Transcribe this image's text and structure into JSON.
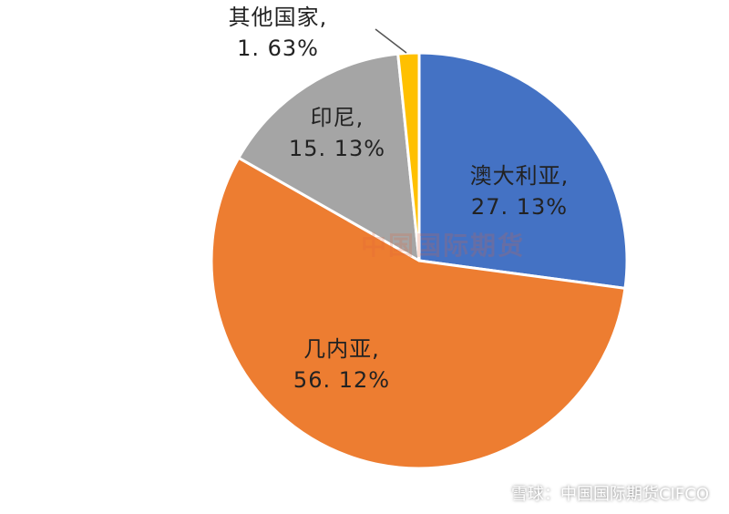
{
  "chart_data": {
    "type": "pie",
    "slices": [
      {
        "name": "澳大利亚,",
        "value": 27.13,
        "value_label": "27. 13%",
        "color": "#4472c4"
      },
      {
        "name": "几内亚,",
        "value": 56.12,
        "value_label": "56. 12%",
        "color": "#ed7d31"
      },
      {
        "name": "印尼,",
        "value": 15.13,
        "value_label": "15. 13%",
        "color": "#a5a5a5"
      },
      {
        "name": "其他国家,",
        "value": 1.63,
        "value_label": "1. 63%",
        "color": "#ffc000"
      }
    ],
    "start_angle_deg": 0,
    "direction": "clockwise",
    "legend": "none"
  },
  "watermark": {
    "center": "中国国际期货",
    "footer": "雪球：中国国际期货CIFCO"
  }
}
